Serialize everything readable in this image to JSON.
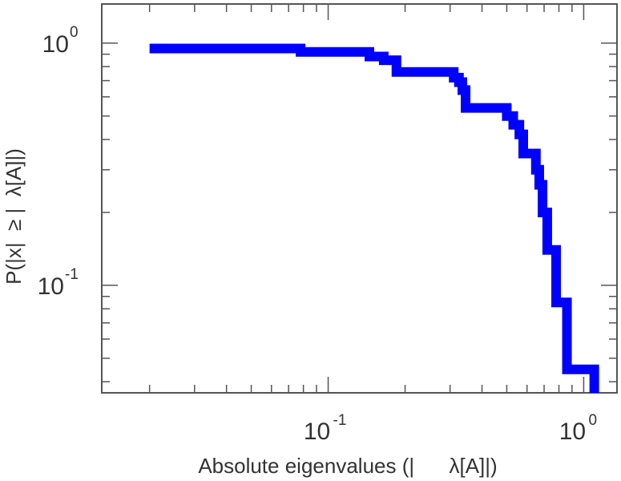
{
  "chart_data": {
    "type": "line",
    "step": true,
    "xscale": "log",
    "yscale": "log",
    "xlim": [
      0.013,
      1.35
    ],
    "ylim": [
      0.036,
      1.45
    ],
    "xlabel": "Absolute eigenvalues (|      λ[A]|)",
    "ylabel": "P(|x|  ≥ |  λ[A]|)",
    "x_ticks": [
      {
        "base": "10",
        "exp": "-1",
        "value": 0.1
      },
      {
        "base": "10",
        "exp": "0",
        "value": 1
      }
    ],
    "y_ticks": [
      {
        "base": "10",
        "exp": "-1",
        "value": 0.1
      },
      {
        "base": "10",
        "exp": "0",
        "value": 1
      }
    ],
    "series": [
      {
        "color": "#0000ff",
        "x": [
          0.02,
          0.078,
          0.145,
          0.165,
          0.185,
          0.31,
          0.325,
          0.335,
          0.345,
          0.5,
          0.53,
          0.56,
          0.58,
          0.65,
          0.67,
          0.69,
          0.72,
          0.78,
          0.86,
          1.1,
          1.1
        ],
        "y": [
          0.95,
          0.92,
          0.88,
          0.85,
          0.76,
          0.72,
          0.69,
          0.64,
          0.54,
          0.5,
          0.46,
          0.42,
          0.35,
          0.3,
          0.26,
          0.2,
          0.14,
          0.085,
          0.045,
          0.045,
          0.036
        ]
      }
    ]
  }
}
